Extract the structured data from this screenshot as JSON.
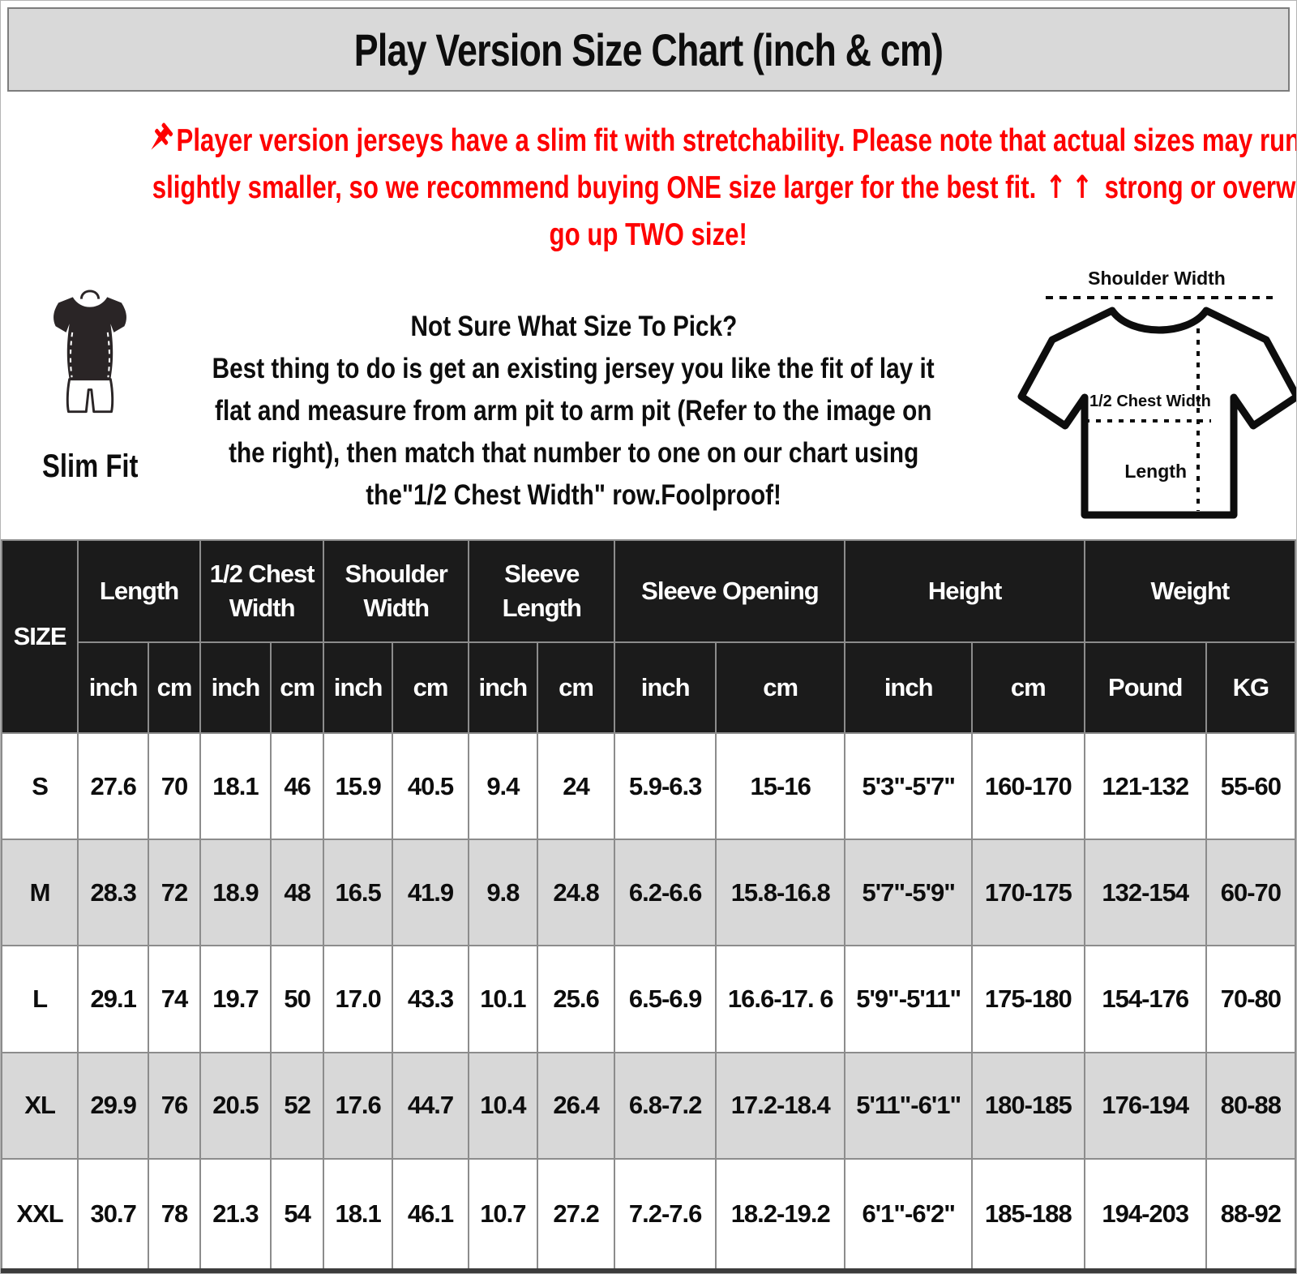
{
  "title": "Play Version Size Chart (inch & cm)",
  "colors": {
    "accent_red": "#fe0000",
    "title_bar_bg": "#d9d9d9",
    "table_header_bg": "#1b1b1b",
    "table_grid": "#8c8c8c",
    "table_alt_row_bg": "#d8d8d8"
  },
  "notice": {
    "line1": "Player version jerseys have a slim fit with stretchability. Please note that actual sizes may run",
    "line2_before": "slightly smaller, so we recommend buying ONE size larger for the best fit.",
    "up_arrows": "↑↑",
    "line2_after": "strong or overweight,",
    "line3": "go up TWO size!"
  },
  "fit": {
    "label": "Slim Fit"
  },
  "size_help": {
    "heading": "Not Sure What Size To Pick?",
    "line1": "Best thing to do is get an existing jersey you like the fit of lay it",
    "line2": "flat and measure from arm pit to arm pit (Refer to the image on",
    "line3": "the right), then match that number to one on our chart using",
    "line4": "the\"1/2 Chest Width\" row.Foolproof!"
  },
  "diagram": {
    "shoulder_width_label": "Shoulder Width",
    "half_chest_width_label": "1/2 Chest Width",
    "length_label": "Length"
  },
  "size_table": {
    "size_label": "SIZE",
    "groups": [
      "Length",
      "1/2 Chest Width",
      "Shoulder Width",
      "Sleeve Length",
      "Sleeve Opening",
      "Height",
      "Weight"
    ],
    "units": [
      "inch",
      "cm",
      "inch",
      "cm",
      "inch",
      "cm",
      "inch",
      "cm",
      "inch",
      "cm",
      "inch",
      "cm",
      "Pound",
      "KG"
    ],
    "rows": [
      {
        "size": "S",
        "values": [
          "27.6",
          "70",
          "18.1",
          "46",
          "15.9",
          "40.5",
          "9.4",
          "24",
          "5.9-6.3",
          "15-16",
          "5'3\"-5'7\"",
          "160-170",
          "121-132",
          "55-60"
        ]
      },
      {
        "size": "M",
        "values": [
          "28.3",
          "72",
          "18.9",
          "48",
          "16.5",
          "41.9",
          "9.8",
          "24.8",
          "6.2-6.6",
          "15.8-16.8",
          "5'7\"-5'9\"",
          "170-175",
          "132-154",
          "60-70"
        ]
      },
      {
        "size": "L",
        "values": [
          "29.1",
          "74",
          "19.7",
          "50",
          "17.0",
          "43.3",
          "10.1",
          "25.6",
          "6.5-6.9",
          "16.6-17. 6",
          "5'9\"-5'11\"",
          "175-180",
          "154-176",
          "70-80"
        ]
      },
      {
        "size": "XL",
        "values": [
          "29.9",
          "76",
          "20.5",
          "52",
          "17.6",
          "44.7",
          "10.4",
          "26.4",
          "6.8-7.2",
          "17.2-18.4",
          "5'11\"-6'1\"",
          "180-185",
          "176-194",
          "80-88"
        ]
      },
      {
        "size": "XXL",
        "values": [
          "30.7",
          "78",
          "21.3",
          "54",
          "18.1",
          "46.1",
          "10.7",
          "27.2",
          "7.2-7.6",
          "18.2-19.2",
          "6'1\"-6'2\"",
          "185-188",
          "194-203",
          "88-92"
        ]
      }
    ]
  }
}
